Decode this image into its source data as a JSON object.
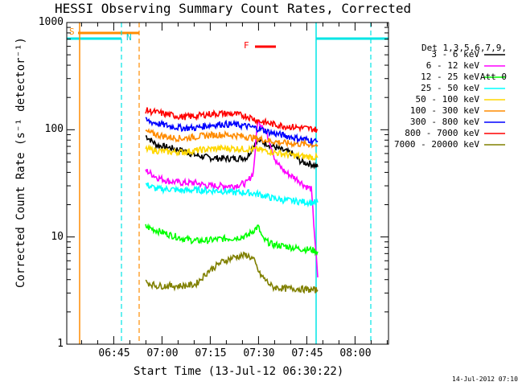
{
  "title": "HESSI Observing Summary Count Rates, Corrected",
  "timestamp": "14-Jul-2012 07:10",
  "markers": {
    "s": "S",
    "n": "N",
    "f": "F"
  },
  "colors": {
    "attenuator": "#ff8c00",
    "night": "#00e5e5",
    "flare": "#ff0000",
    "axes": "#000000"
  },
  "chart_data": {
    "type": "line",
    "title": "HESSI Observing Summary Count Rates, Corrected",
    "xlabel": "Start Time (13-Jul-12 06:30:22)",
    "ylabel": "Corrected Count Rate (s⁻¹ detector⁻¹)",
    "yscale": "log",
    "ylim": [
      1,
      1000
    ],
    "y_ticks": [
      "1",
      "10",
      "100",
      "1000"
    ],
    "x_unit": "minutes after 06:30:22",
    "xlim": [
      0,
      100
    ],
    "x_ticks": [
      {
        "label": "06:45",
        "x": 14.6
      },
      {
        "label": "07:00",
        "x": 29.6
      },
      {
        "label": "07:15",
        "x": 44.6
      },
      {
        "label": "07:30",
        "x": 59.6
      },
      {
        "label": "07:45",
        "x": 74.6
      },
      {
        "label": "08:00",
        "x": 89.6
      }
    ],
    "legend_title": [
      "Det 1,3,5,6,7,9,",
      "Att 0"
    ],
    "legend_position": "right",
    "series": [
      {
        "name": "3 - 6 keV",
        "color": "#000000",
        "points": [
          [
            24.5,
            88
          ],
          [
            28,
            72
          ],
          [
            32,
            68
          ],
          [
            36,
            64
          ],
          [
            40,
            58
          ],
          [
            44,
            55
          ],
          [
            48,
            54
          ],
          [
            52,
            54
          ],
          [
            56,
            55
          ],
          [
            59,
            80
          ],
          [
            62,
            75
          ],
          [
            66,
            66
          ],
          [
            70,
            60
          ],
          [
            73,
            50
          ],
          [
            76,
            48
          ],
          [
            78,
            45
          ]
        ]
      },
      {
        "name": "6 - 12 keV",
        "color": "#ff00ff",
        "points": [
          [
            24.5,
            42
          ],
          [
            28,
            36
          ],
          [
            32,
            33
          ],
          [
            36,
            32
          ],
          [
            40,
            32
          ],
          [
            44,
            30
          ],
          [
            48,
            30
          ],
          [
            52,
            30
          ],
          [
            56,
            32
          ],
          [
            58,
            40
          ],
          [
            59.3,
            120
          ],
          [
            61,
            110
          ],
          [
            63,
            80
          ],
          [
            65,
            50
          ],
          [
            68,
            40
          ],
          [
            72,
            34
          ],
          [
            74,
            30
          ],
          [
            76,
            28
          ],
          [
            78,
            4.2
          ]
        ]
      },
      {
        "name": "12 - 25 keV",
        "color": "#00ff00",
        "points": [
          [
            24.5,
            12.5
          ],
          [
            28,
            11.5
          ],
          [
            32,
            10.5
          ],
          [
            36,
            9.7
          ],
          [
            40,
            9.2
          ],
          [
            44,
            9.3
          ],
          [
            48,
            9.6
          ],
          [
            52,
            9.8
          ],
          [
            56,
            10.2
          ],
          [
            58,
            11.5
          ],
          [
            59.5,
            12.5
          ],
          [
            61,
            9.5
          ],
          [
            64,
            8.5
          ],
          [
            68,
            8.2
          ],
          [
            72,
            7.8
          ],
          [
            76,
            7.6
          ],
          [
            78,
            7.3
          ]
        ]
      },
      {
        "name": "25 - 50 keV",
        "color": "#00ffff",
        "points": [
          [
            24.5,
            31
          ],
          [
            28,
            28
          ],
          [
            32,
            28
          ],
          [
            36,
            27
          ],
          [
            40,
            27.5
          ],
          [
            44,
            27
          ],
          [
            48,
            27
          ],
          [
            52,
            26
          ],
          [
            56,
            26
          ],
          [
            60,
            25
          ],
          [
            64,
            23
          ],
          [
            68,
            22
          ],
          [
            72,
            21.5
          ],
          [
            76,
            21
          ],
          [
            78,
            21
          ]
        ]
      },
      {
        "name": "50 - 100 keV",
        "color": "#ffd700",
        "points": [
          [
            24.5,
            66
          ],
          [
            28,
            64
          ],
          [
            32,
            62
          ],
          [
            36,
            62
          ],
          [
            40,
            64
          ],
          [
            44,
            66
          ],
          [
            48,
            67
          ],
          [
            52,
            67
          ],
          [
            56,
            66
          ],
          [
            60,
            65
          ],
          [
            64,
            62
          ],
          [
            68,
            59
          ],
          [
            72,
            57
          ],
          [
            76,
            56
          ],
          [
            78,
            55
          ]
        ]
      },
      {
        "name": "100 - 300 keV",
        "color": "#ff8c00",
        "points": [
          [
            24.5,
            96
          ],
          [
            28,
            90
          ],
          [
            32,
            85
          ],
          [
            36,
            83
          ],
          [
            40,
            86
          ],
          [
            44,
            89
          ],
          [
            48,
            90
          ],
          [
            52,
            89
          ],
          [
            56,
            86
          ],
          [
            60,
            82
          ],
          [
            64,
            78
          ],
          [
            68,
            75
          ],
          [
            72,
            74
          ],
          [
            76,
            73
          ],
          [
            78,
            72
          ]
        ]
      },
      {
        "name": "300 - 800 keV",
        "color": "#0000ff",
        "points": [
          [
            24.5,
            122
          ],
          [
            28,
            115
          ],
          [
            32,
            108
          ],
          [
            36,
            104
          ],
          [
            40,
            104
          ],
          [
            44,
            110
          ],
          [
            48,
            113
          ],
          [
            52,
            112
          ],
          [
            56,
            108
          ],
          [
            60,
            102
          ],
          [
            64,
            93
          ],
          [
            68,
            88
          ],
          [
            72,
            83
          ],
          [
            76,
            80
          ],
          [
            78,
            77
          ]
        ]
      },
      {
        "name": "800 - 7000 keV",
        "color": "#ff0000",
        "points": [
          [
            24.5,
            152
          ],
          [
            28,
            145
          ],
          [
            32,
            138
          ],
          [
            36,
            132
          ],
          [
            40,
            134
          ],
          [
            44,
            140
          ],
          [
            48,
            142
          ],
          [
            52,
            140
          ],
          [
            56,
            134
          ],
          [
            60,
            120
          ],
          [
            64,
            113
          ],
          [
            68,
            108
          ],
          [
            72,
            105
          ],
          [
            76,
            102
          ],
          [
            78,
            100
          ]
        ]
      },
      {
        "name": "7000 - 20000 keV",
        "color": "#808000",
        "points": [
          [
            24.5,
            3.8
          ],
          [
            28,
            3.5
          ],
          [
            32,
            3.5
          ],
          [
            36,
            3.5
          ],
          [
            40,
            3.6
          ],
          [
            44,
            4.8
          ],
          [
            48,
            5.8
          ],
          [
            52,
            6.5
          ],
          [
            56,
            6.8
          ],
          [
            58,
            6.2
          ],
          [
            60,
            4.5
          ],
          [
            64,
            3.4
          ],
          [
            68,
            3.3
          ],
          [
            72,
            3.3
          ],
          [
            76,
            3.2
          ],
          [
            78,
            3.2
          ]
        ]
      }
    ]
  }
}
